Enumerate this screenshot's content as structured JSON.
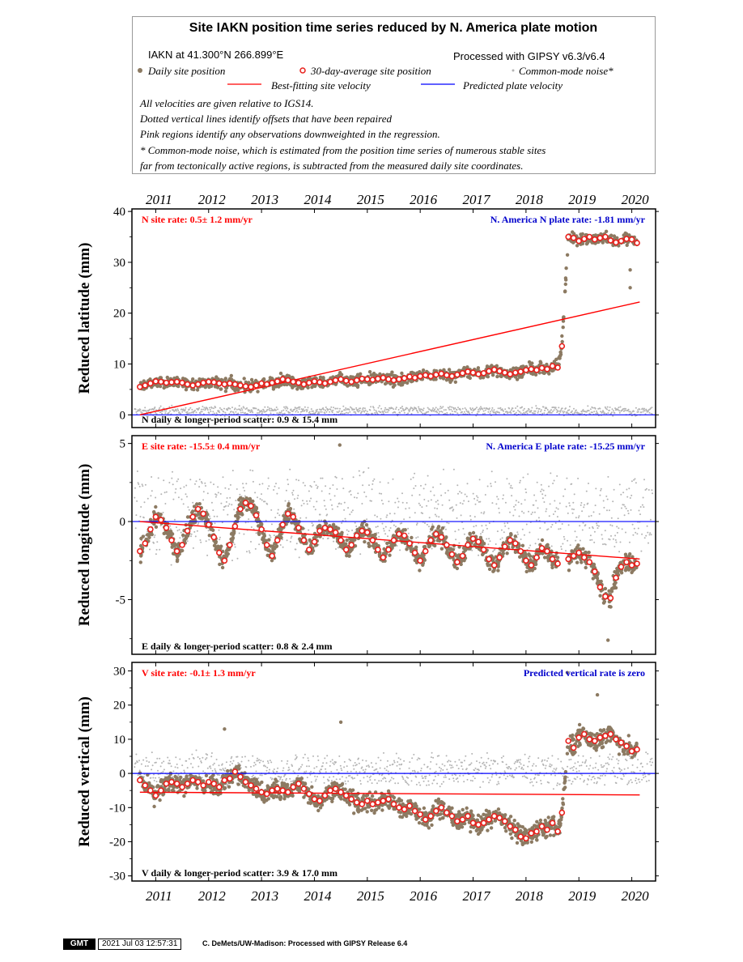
{
  "header": {
    "title": "Site IAKN position time series reduced by N. America plate motion",
    "site_coords": "IAKN at 41.300°N 266.899°E",
    "processed": "Processed with GIPSY v6.3/v6.4",
    "legend_daily": "Daily site position",
    "legend_avg": "30-day-average site position",
    "legend_cm": "Common-mode noise*",
    "legend_best": "Best-fitting site velocity",
    "legend_pred": "Predicted plate velocity",
    "notes": [
      "All velocities are given relative to IGS14.",
      "Dotted vertical lines identify offsets that have been repaired",
      "Pink regions identify any observations downweighted in the regression.",
      "* Common-mode noise, which is estimated from the position time series of numerous stable sites",
      "far from tectonically active regions, is subtracted from the measured daily site coordinates."
    ]
  },
  "colors": {
    "daily": "#8c7a62",
    "avg_stroke": "#e8201c",
    "avg_fill": "#ffffff",
    "noise": "#b4b4b4",
    "best_fit": "#ff0000",
    "plate": "#0000ff",
    "site_rate_text": "#ff0000",
    "plate_rate_text": "#0000cc"
  },
  "chart_data": [
    {
      "type": "scatter",
      "component": "north",
      "ylabel": "Reduced latitude (mm)",
      "ylim": [
        -2.5,
        40.5
      ],
      "yticks": [
        0,
        10,
        20,
        30,
        40
      ],
      "xlim": [
        2010.55,
        2020.45
      ],
      "xticks": [
        "2011",
        "2012",
        "2013",
        "2014",
        "2015",
        "2016",
        "2017",
        "2018",
        "2019",
        "2020"
      ],
      "site_rate": "N site rate:  0.5± 1.2 mm/yr",
      "plate_rate": "N. America N plate rate: -1.81 mm/yr",
      "scatter": "N daily & longer-period scatter:   0.9 &  15.4 mm",
      "best_fit": [
        [
          2010.7,
          0.0
        ],
        [
          2020.15,
          22.2
        ]
      ],
      "predicted": [
        [
          2010.55,
          0.0
        ],
        [
          2020.45,
          0.0
        ]
      ],
      "avg_series": [
        [
          2010.7,
          5.5
        ],
        [
          2010.8,
          5.8
        ],
        [
          2010.9,
          6.2
        ],
        [
          2011.0,
          6.6
        ],
        [
          2011.1,
          6.5
        ],
        [
          2011.2,
          6.3
        ],
        [
          2011.3,
          6.4
        ],
        [
          2011.4,
          6.5
        ],
        [
          2011.5,
          6.3
        ],
        [
          2011.6,
          6.0
        ],
        [
          2011.7,
          5.8
        ],
        [
          2011.8,
          6.0
        ],
        [
          2011.9,
          6.3
        ],
        [
          2012.0,
          6.5
        ],
        [
          2012.1,
          6.4
        ],
        [
          2012.2,
          6.2
        ],
        [
          2012.3,
          6.0
        ],
        [
          2012.4,
          6.2
        ],
        [
          2012.5,
          6.0
        ],
        [
          2012.6,
          5.8
        ],
        [
          2012.7,
          5.6
        ],
        [
          2012.8,
          5.5
        ],
        [
          2012.9,
          5.8
        ],
        [
          2013.0,
          6.2
        ],
        [
          2013.1,
          6.0
        ],
        [
          2013.2,
          6.3
        ],
        [
          2013.3,
          6.6
        ],
        [
          2013.4,
          7.0
        ],
        [
          2013.5,
          6.8
        ],
        [
          2013.6,
          6.5
        ],
        [
          2013.7,
          6.3
        ],
        [
          2013.8,
          6.0
        ],
        [
          2013.9,
          6.3
        ],
        [
          2014.0,
          6.6
        ],
        [
          2014.1,
          6.4
        ],
        [
          2014.2,
          6.2
        ],
        [
          2014.3,
          6.5
        ],
        [
          2014.4,
          6.8
        ],
        [
          2014.5,
          7.0
        ],
        [
          2014.6,
          6.7
        ],
        [
          2014.7,
          6.5
        ],
        [
          2014.8,
          6.8
        ],
        [
          2014.9,
          7.1
        ],
        [
          2015.0,
          7.0
        ],
        [
          2015.1,
          6.9
        ],
        [
          2015.2,
          7.1
        ],
        [
          2015.3,
          7.3
        ],
        [
          2015.4,
          7.0
        ],
        [
          2015.5,
          6.8
        ],
        [
          2015.6,
          7.0
        ],
        [
          2015.7,
          7.2
        ],
        [
          2015.8,
          7.5
        ],
        [
          2015.9,
          7.3
        ],
        [
          2016.0,
          7.6
        ],
        [
          2016.1,
          7.8
        ],
        [
          2016.2,
          7.6
        ],
        [
          2016.3,
          7.9
        ],
        [
          2016.4,
          8.1
        ],
        [
          2016.5,
          7.8
        ],
        [
          2016.6,
          7.6
        ],
        [
          2016.7,
          7.9
        ],
        [
          2016.8,
          8.2
        ],
        [
          2016.9,
          8.5
        ],
        [
          2017.0,
          8.3
        ],
        [
          2017.1,
          8.0
        ],
        [
          2017.2,
          8.2
        ],
        [
          2017.3,
          8.6
        ],
        [
          2017.4,
          8.9
        ],
        [
          2017.5,
          8.6
        ],
        [
          2017.6,
          8.3
        ],
        [
          2017.7,
          8.0
        ],
        [
          2017.8,
          8.3
        ],
        [
          2017.9,
          8.5
        ],
        [
          2018.0,
          8.8
        ],
        [
          2018.1,
          9.0
        ],
        [
          2018.2,
          8.8
        ],
        [
          2018.3,
          9.2
        ],
        [
          2018.4,
          9.0
        ],
        [
          2018.5,
          9.6
        ],
        [
          2018.6,
          9.3
        ],
        [
          2018.68,
          13.5
        ],
        [
          2018.8,
          35.0
        ],
        [
          2018.9,
          34.8
        ],
        [
          2019.0,
          34.2
        ],
        [
          2019.1,
          34.6
        ],
        [
          2019.2,
          35.0
        ],
        [
          2019.3,
          34.5
        ],
        [
          2019.4,
          34.8
        ],
        [
          2019.5,
          35.0
        ],
        [
          2019.6,
          34.3
        ],
        [
          2019.7,
          33.9
        ],
        [
          2019.8,
          34.2
        ],
        [
          2019.9,
          34.6
        ],
        [
          2020.0,
          34.5
        ],
        [
          2020.1,
          33.8
        ]
      ],
      "noise_band": [
        0.0,
        1.5
      ],
      "outliers": [
        [
          2019.97,
          25.0
        ],
        [
          2019.97,
          28.5
        ],
        [
          2018.68,
          15.5
        ]
      ]
    },
    {
      "type": "scatter",
      "component": "east",
      "ylabel": "Reduced longitude (mm)",
      "ylim": [
        -8.5,
        5.5
      ],
      "yticks": [
        -5,
        0,
        5
      ],
      "xlim": [
        2010.55,
        2020.45
      ],
      "site_rate": "E site rate: -15.5± 0.4 mm/yr",
      "plate_rate": "N. America E plate rate: -15.25 mm/yr",
      "scatter": "E daily & longer-period scatter:   0.8 &   2.4 mm",
      "best_fit": [
        [
          2010.7,
          0.0
        ],
        [
          2020.15,
          -2.4
        ]
      ],
      "predicted": [
        [
          2010.55,
          0.0
        ],
        [
          2020.45,
          0.0
        ]
      ],
      "avg_series": [
        [
          2010.7,
          -1.9
        ],
        [
          2010.8,
          -1.4
        ],
        [
          2010.9,
          -0.5
        ],
        [
          2011.0,
          0.3
        ],
        [
          2011.1,
          0.1
        ],
        [
          2011.2,
          -0.4
        ],
        [
          2011.3,
          -1.2
        ],
        [
          2011.4,
          -1.9
        ],
        [
          2011.5,
          -1.5
        ],
        [
          2011.6,
          -0.6
        ],
        [
          2011.7,
          0.3
        ],
        [
          2011.8,
          0.8
        ],
        [
          2011.9,
          0.5
        ],
        [
          2012.0,
          -0.2
        ],
        [
          2012.1,
          -1.0
        ],
        [
          2012.2,
          -2.0
        ],
        [
          2012.3,
          -2.5
        ],
        [
          2012.4,
          -1.5
        ],
        [
          2012.5,
          -0.3
        ],
        [
          2012.6,
          0.8
        ],
        [
          2012.7,
          1.2
        ],
        [
          2012.8,
          1.0
        ],
        [
          2012.9,
          0.4
        ],
        [
          2013.0,
          -0.5
        ],
        [
          2013.1,
          -1.5
        ],
        [
          2013.2,
          -2.2
        ],
        [
          2013.3,
          -1.2
        ],
        [
          2013.4,
          -0.2
        ],
        [
          2013.5,
          0.5
        ],
        [
          2013.6,
          0.3
        ],
        [
          2013.7,
          -0.4
        ],
        [
          2013.8,
          -1.2
        ],
        [
          2013.9,
          -1.8
        ],
        [
          2014.0,
          -1.3
        ],
        [
          2014.1,
          -0.6
        ],
        [
          2014.2,
          -0.4
        ],
        [
          2014.3,
          -0.5
        ],
        [
          2014.4,
          -0.7
        ],
        [
          2014.5,
          -1.2
        ],
        [
          2014.6,
          -1.8
        ],
        [
          2014.7,
          -1.5
        ],
        [
          2014.8,
          -0.9
        ],
        [
          2014.9,
          -0.6
        ],
        [
          2015.0,
          -0.7
        ],
        [
          2015.1,
          -1.2
        ],
        [
          2015.2,
          -1.8
        ],
        [
          2015.3,
          -2.3
        ],
        [
          2015.4,
          -1.8
        ],
        [
          2015.5,
          -1.2
        ],
        [
          2015.6,
          -0.8
        ],
        [
          2015.7,
          -0.9
        ],
        [
          2015.8,
          -1.4
        ],
        [
          2015.9,
          -2.0
        ],
        [
          2016.0,
          -2.5
        ],
        [
          2016.1,
          -1.9
        ],
        [
          2016.2,
          -1.2
        ],
        [
          2016.3,
          -0.8
        ],
        [
          2016.4,
          -1.0
        ],
        [
          2016.5,
          -1.5
        ],
        [
          2016.6,
          -2.1
        ],
        [
          2016.7,
          -2.6
        ],
        [
          2016.8,
          -2.2
        ],
        [
          2016.9,
          -1.5
        ],
        [
          2017.0,
          -1.1
        ],
        [
          2017.1,
          -1.3
        ],
        [
          2017.2,
          -1.8
        ],
        [
          2017.3,
          -2.4
        ],
        [
          2017.4,
          -2.8
        ],
        [
          2017.5,
          -2.3
        ],
        [
          2017.6,
          -1.6
        ],
        [
          2017.7,
          -1.2
        ],
        [
          2017.8,
          -1.4
        ],
        [
          2017.9,
          -1.9
        ],
        [
          2018.0,
          -2.5
        ],
        [
          2018.1,
          -2.8
        ],
        [
          2018.2,
          -2.3
        ],
        [
          2018.3,
          -1.7
        ],
        [
          2018.4,
          -1.9
        ],
        [
          2018.5,
          -2.4
        ],
        [
          2018.6,
          -2.7
        ],
        [
          2018.8,
          -2.4
        ],
        [
          2018.9,
          -2.2
        ],
        [
          2019.0,
          -2.0
        ],
        [
          2019.1,
          -2.3
        ],
        [
          2019.2,
          -2.6
        ],
        [
          2019.3,
          -3.2
        ],
        [
          2019.4,
          -4.2
        ],
        [
          2019.5,
          -4.8
        ],
        [
          2019.6,
          -4.9
        ],
        [
          2019.7,
          -3.6
        ],
        [
          2019.8,
          -2.9
        ],
        [
          2019.9,
          -2.6
        ],
        [
          2020.0,
          -2.8
        ],
        [
          2020.1,
          -2.7
        ]
      ],
      "noise_band": [
        -1.8,
        2.8
      ],
      "outliers": [
        [
          2014.48,
          4.9
        ],
        [
          2019.55,
          -7.6
        ]
      ]
    },
    {
      "type": "scatter",
      "component": "vertical",
      "ylabel": "Reduced vertical (mm)",
      "ylim": [
        -31.5,
        32.5
      ],
      "yticks": [
        -30,
        -20,
        -10,
        0,
        10,
        20,
        30
      ],
      "xlim": [
        2010.55,
        2020.45
      ],
      "site_rate": "V site rate:  -0.1± 1.3 mm/yr",
      "plate_rate": "Predicted vertical rate is zero",
      "scatter": "V daily & longer-period scatter:   3.9 &  17.0 mm",
      "best_fit": [
        [
          2010.7,
          -5.5
        ],
        [
          2020.15,
          -6.3
        ]
      ],
      "predicted": [
        [
          2010.55,
          0.0
        ],
        [
          2020.45,
          0.0
        ]
      ],
      "avg_series": [
        [
          2010.7,
          -2.0
        ],
        [
          2010.8,
          -3.5
        ],
        [
          2010.9,
          -5.0
        ],
        [
          2011.0,
          -6.5
        ],
        [
          2011.1,
          -5.0
        ],
        [
          2011.2,
          -3.0
        ],
        [
          2011.3,
          -2.5
        ],
        [
          2011.4,
          -3.0
        ],
        [
          2011.5,
          -4.0
        ],
        [
          2011.6,
          -3.0
        ],
        [
          2011.7,
          -2.0
        ],
        [
          2011.8,
          -2.5
        ],
        [
          2011.9,
          -3.5
        ],
        [
          2012.0,
          -2.5
        ],
        [
          2012.1,
          -3.0
        ],
        [
          2012.2,
          -4.0
        ],
        [
          2012.3,
          -2.0
        ],
        [
          2012.4,
          -1.5
        ],
        [
          2012.5,
          0.5
        ],
        [
          2012.6,
          -1.0
        ],
        [
          2012.7,
          -2.5
        ],
        [
          2012.8,
          -3.5
        ],
        [
          2012.9,
          -4.5
        ],
        [
          2013.0,
          -5.5
        ],
        [
          2013.1,
          -6.0
        ],
        [
          2013.2,
          -5.0
        ],
        [
          2013.3,
          -4.5
        ],
        [
          2013.4,
          -5.0
        ],
        [
          2013.5,
          -5.5
        ],
        [
          2013.6,
          -4.0
        ],
        [
          2013.7,
          -3.0
        ],
        [
          2013.8,
          -4.5
        ],
        [
          2013.9,
          -6.0
        ],
        [
          2014.0,
          -7.5
        ],
        [
          2014.1,
          -8.0
        ],
        [
          2014.2,
          -6.5
        ],
        [
          2014.3,
          -5.0
        ],
        [
          2014.4,
          -4.5
        ],
        [
          2014.5,
          -5.5
        ],
        [
          2014.6,
          -6.5
        ],
        [
          2014.7,
          -7.5
        ],
        [
          2014.8,
          -8.5
        ],
        [
          2014.9,
          -9.0
        ],
        [
          2015.0,
          -8.0
        ],
        [
          2015.1,
          -9.0
        ],
        [
          2015.2,
          -8.5
        ],
        [
          2015.3,
          -8.0
        ],
        [
          2015.4,
          -7.5
        ],
        [
          2015.5,
          -9.0
        ],
        [
          2015.6,
          -10.0
        ],
        [
          2015.7,
          -10.5
        ],
        [
          2015.8,
          -9.5
        ],
        [
          2015.9,
          -11.0
        ],
        [
          2016.0,
          -12.0
        ],
        [
          2016.1,
          -13.5
        ],
        [
          2016.2,
          -12.5
        ],
        [
          2016.3,
          -11.0
        ],
        [
          2016.4,
          -10.0
        ],
        [
          2016.5,
          -11.5
        ],
        [
          2016.6,
          -12.5
        ],
        [
          2016.7,
          -14.0
        ],
        [
          2016.8,
          -13.5
        ],
        [
          2016.9,
          -12.5
        ],
        [
          2017.0,
          -14.5
        ],
        [
          2017.1,
          -15.0
        ],
        [
          2017.2,
          -14.5
        ],
        [
          2017.3,
          -13.5
        ],
        [
          2017.4,
          -12.5
        ],
        [
          2017.5,
          -13.0
        ],
        [
          2017.6,
          -14.0
        ],
        [
          2017.7,
          -15.5
        ],
        [
          2017.8,
          -16.5
        ],
        [
          2017.9,
          -18.5
        ],
        [
          2018.0,
          -19.0
        ],
        [
          2018.1,
          -17.5
        ],
        [
          2018.2,
          -17.0
        ],
        [
          2018.3,
          -15.5
        ],
        [
          2018.4,
          -16.5
        ],
        [
          2018.5,
          -14.5
        ],
        [
          2018.6,
          -17.0
        ],
        [
          2018.68,
          -11.5
        ],
        [
          2018.8,
          9.5
        ],
        [
          2018.9,
          7.5
        ],
        [
          2019.0,
          10.5
        ],
        [
          2019.1,
          11.5
        ],
        [
          2019.2,
          10.0
        ],
        [
          2019.3,
          9.5
        ],
        [
          2019.4,
          10.5
        ],
        [
          2019.5,
          11.0
        ],
        [
          2019.6,
          11.5
        ],
        [
          2019.7,
          10.0
        ],
        [
          2019.8,
          9.0
        ],
        [
          2019.9,
          8.0
        ],
        [
          2020.0,
          6.5
        ],
        [
          2020.1,
          7.0
        ]
      ],
      "noise_band": [
        -3.0,
        5.0
      ],
      "outliers": [
        [
          2018.78,
          29.5
        ],
        [
          2014.5,
          15.0
        ],
        [
          2012.3,
          13.0
        ],
        [
          2019.35,
          23.0
        ]
      ]
    }
  ],
  "footer": {
    "logo": "GMT",
    "stamp": "2021 Jul 03 12:57:31",
    "credit": "C. DeMets/UW-Madison: Processed with GIPSY Release 6.4"
  }
}
